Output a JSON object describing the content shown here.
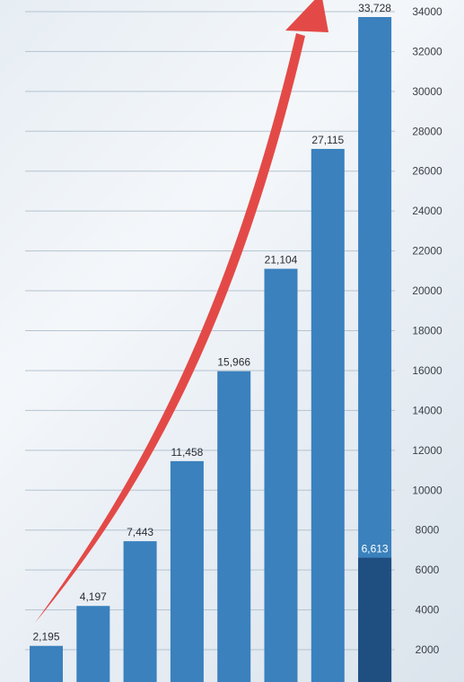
{
  "chart_data": {
    "type": "bar",
    "values": [
      2195,
      4197,
      7443,
      11458,
      15966,
      21104,
      27115,
      33728
    ],
    "value_labels": [
      "2,195",
      "4,197",
      "7,443",
      "11,458",
      "15,966",
      "21,104",
      "27,115",
      "33,728"
    ],
    "highlight": {
      "bar_index": 7,
      "value": 6613,
      "label": "6,613",
      "color": "#1f4e80"
    },
    "ylim": [
      0,
      34500
    ],
    "yticks": [
      2000,
      4000,
      6000,
      8000,
      10000,
      12000,
      14000,
      16000,
      18000,
      20000,
      22000,
      24000,
      26000,
      28000,
      30000,
      32000,
      34000
    ],
    "ytick_labels": [
      "2000",
      "4000",
      "6000",
      "8000",
      "10000",
      "12000",
      "14000",
      "16000",
      "18000",
      "20000",
      "22000",
      "24000",
      "26000",
      "28000",
      "30000",
      "32000",
      "34000"
    ],
    "y_axis_side": "right",
    "grid": true,
    "trend_arrow": true,
    "colors": {
      "bar": "#3a81bd",
      "highlight": "#1f4e80",
      "arrow": "#e34a47",
      "grid": "#b5c3cf"
    }
  }
}
